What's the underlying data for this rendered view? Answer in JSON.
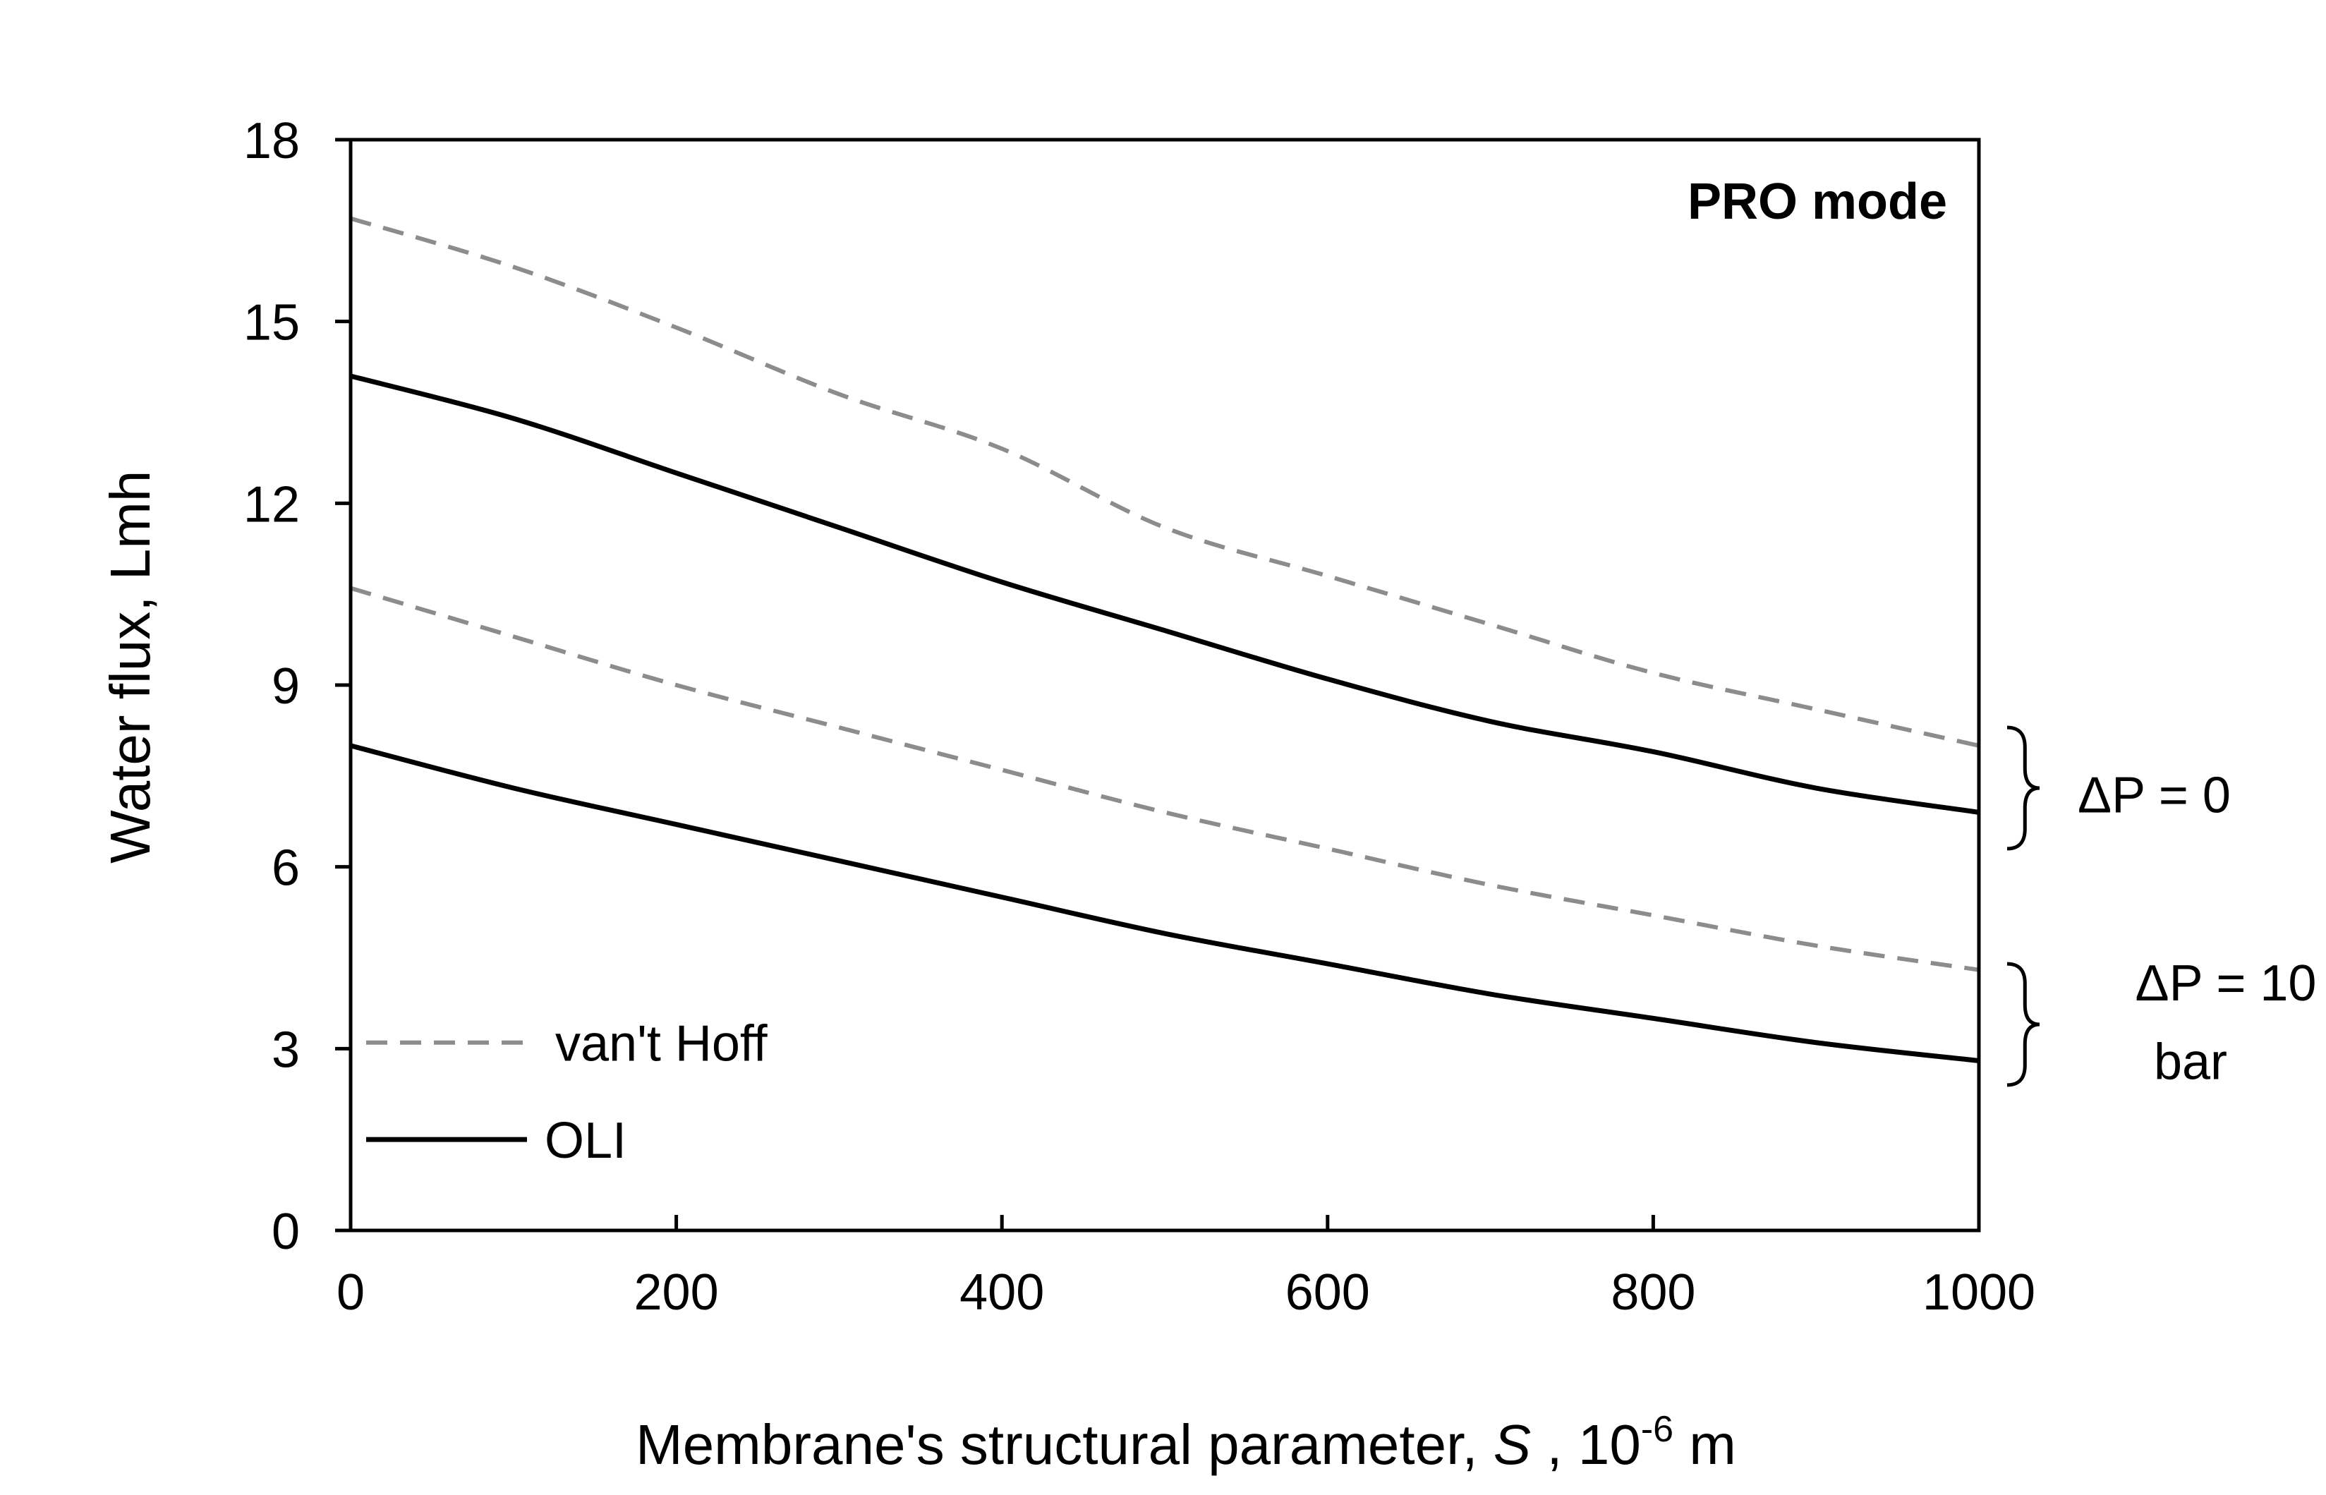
{
  "chart_data": {
    "type": "line",
    "title": "PRO mode",
    "xlabel": {
      "prefix": "Membrane's structural parameter, ",
      "variable": "S",
      "middle": " , 10",
      "exponent": "-6",
      "unit": " m"
    },
    "ylabel": "Water flux, Lmh",
    "xlim": [
      0,
      1000
    ],
    "ylim": [
      0,
      18
    ],
    "xticks": [
      0,
      200,
      400,
      600,
      800,
      1000
    ],
    "xtick_labels": [
      "0",
      "200",
      "400",
      "600",
      "800",
      "1000"
    ],
    "yticks": [
      0,
      3,
      6,
      9,
      12,
      15,
      18
    ],
    "ytick_labels": [
      "0",
      "3",
      "6",
      "9",
      "12",
      "15",
      "18"
    ],
    "grid": false,
    "series": [
      {
        "name": "van't Hoff",
        "group": "ΔP = 0",
        "style": "dashed",
        "color": "#8c8c8c",
        "x": [
          0,
          100,
          200,
          300,
          400,
          500,
          600,
          700,
          800,
          900,
          1000
        ],
        "y": [
          16.7,
          15.9,
          14.9,
          13.8,
          12.9,
          11.6,
          10.8,
          10.0,
          9.2,
          8.6,
          8.0
        ]
      },
      {
        "name": "OLI",
        "group": "ΔP = 0",
        "style": "solid",
        "color": "#000000",
        "x": [
          0,
          100,
          200,
          300,
          400,
          500,
          600,
          700,
          800,
          900,
          1000
        ],
        "y": [
          14.1,
          13.4,
          12.5,
          11.6,
          10.7,
          9.9,
          9.1,
          8.4,
          7.9,
          7.3,
          6.9
        ]
      },
      {
        "name": "van't Hoff",
        "group": "ΔP = 10 bar",
        "style": "dashed",
        "color": "#8c8c8c",
        "x": [
          0,
          100,
          200,
          300,
          400,
          500,
          600,
          700,
          800,
          900,
          1000
        ],
        "y": [
          10.6,
          9.8,
          9.0,
          8.3,
          7.6,
          6.9,
          6.3,
          5.7,
          5.2,
          4.7,
          4.3
        ]
      },
      {
        "name": "OLI",
        "group": "ΔP = 10 bar",
        "style": "solid",
        "color": "#000000",
        "x": [
          0,
          100,
          200,
          300,
          400,
          500,
          600,
          700,
          800,
          900,
          1000
        ],
        "y": [
          8.0,
          7.3,
          6.7,
          6.1,
          5.5,
          4.9,
          4.4,
          3.9,
          3.5,
          3.1,
          2.8
        ]
      }
    ],
    "legend": {
      "placement": "bottom-left",
      "entries": [
        {
          "label": "van't Hoff",
          "style": "dashed",
          "color": "#8c8c8c"
        },
        {
          "label": "OLI",
          "style": "solid",
          "color": "#000000"
        }
      ]
    },
    "annotations": [
      {
        "text": "ΔP = 0",
        "lines": [
          "ΔP = 0"
        ],
        "group": "ΔP = 0"
      },
      {
        "text": "ΔP = 10 bar",
        "lines": [
          "ΔP = 10",
          "bar"
        ],
        "group": "ΔP = 10 bar"
      }
    ]
  }
}
